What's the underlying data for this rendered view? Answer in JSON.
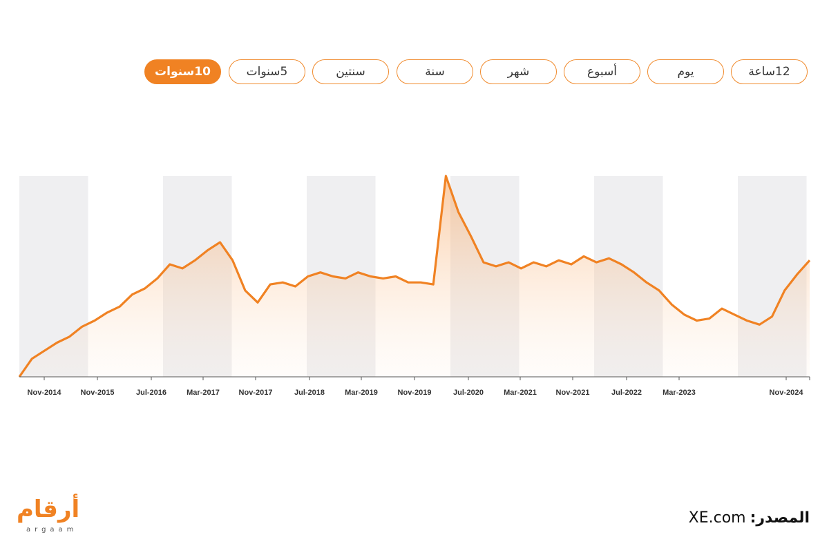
{
  "tabs": [
    {
      "label": "12ساعة",
      "active": false
    },
    {
      "label": "يوم",
      "active": false
    },
    {
      "label": "أسبوع",
      "active": false
    },
    {
      "label": "شهر",
      "active": false
    },
    {
      "label": "سنة",
      "active": false
    },
    {
      "label": "سنتين",
      "active": false
    },
    {
      "label": "5سنوات",
      "active": false
    },
    {
      "label": "10سنوات",
      "active": true
    }
  ],
  "source": {
    "label": "المصدر:",
    "value": "XE.com"
  },
  "logo": {
    "arabic": "أرقام",
    "latin": "argaam"
  },
  "colors": {
    "accent": "#f08223",
    "band": "#efeff1",
    "axis": "#555555"
  },
  "chart_data": {
    "type": "area",
    "title": "",
    "xlabel": "",
    "ylabel": "",
    "grid": false,
    "x_tick_labels": [
      "Nov-2014",
      "Nov-2015",
      "Jul-2016",
      "Mar-2017",
      "Nov-2017",
      "Jul-2018",
      "Mar-2019",
      "Nov-2019",
      "Jul-2020",
      "Mar-2021",
      "Nov-2021",
      "Jul-2022",
      "Mar-2023",
      "Nov-2024"
    ],
    "series": [
      {
        "x": [
          "2014-06",
          "2014-08",
          "2014-10",
          "2014-12",
          "2015-02",
          "2015-04",
          "2015-06",
          "2015-08",
          "2015-10",
          "2015-12",
          "2016-02",
          "2016-04",
          "2016-06",
          "2016-08",
          "2016-10",
          "2016-12",
          "2017-02",
          "2017-04",
          "2017-06",
          "2017-08",
          "2017-10",
          "2017-12",
          "2018-02",
          "2018-04",
          "2018-06",
          "2018-08",
          "2018-10",
          "2018-12",
          "2019-02",
          "2019-04",
          "2019-06",
          "2019-08",
          "2019-10",
          "2019-12",
          "2020-02",
          "2020-04",
          "2020-06",
          "2020-08",
          "2020-10",
          "2020-12",
          "2021-02",
          "2021-04",
          "2021-06",
          "2021-08",
          "2021-10",
          "2021-12",
          "2022-02",
          "2022-04",
          "2022-06",
          "2022-08",
          "2022-10",
          "2022-12",
          "2023-02",
          "2023-04",
          "2023-06",
          "2023-08",
          "2023-10",
          "2023-12",
          "2024-02",
          "2024-04",
          "2024-06",
          "2024-08",
          "2024-10",
          "2024-12"
        ],
        "values": [
          0.0,
          0.09,
          0.13,
          0.17,
          0.2,
          0.25,
          0.28,
          0.32,
          0.35,
          0.41,
          0.44,
          0.49,
          0.56,
          0.54,
          0.58,
          0.63,
          0.67,
          0.58,
          0.43,
          0.37,
          0.46,
          0.47,
          0.45,
          0.5,
          0.52,
          0.5,
          0.49,
          0.52,
          0.5,
          0.49,
          0.5,
          0.47,
          0.47,
          0.46,
          1.0,
          0.82,
          0.7,
          0.57,
          0.55,
          0.57,
          0.54,
          0.57,
          0.55,
          0.58,
          0.56,
          0.6,
          0.57,
          0.59,
          0.56,
          0.52,
          0.47,
          0.43,
          0.36,
          0.31,
          0.28,
          0.29,
          0.34,
          0.31,
          0.28,
          0.26,
          0.3,
          0.43,
          0.51,
          0.58
        ]
      }
    ]
  }
}
